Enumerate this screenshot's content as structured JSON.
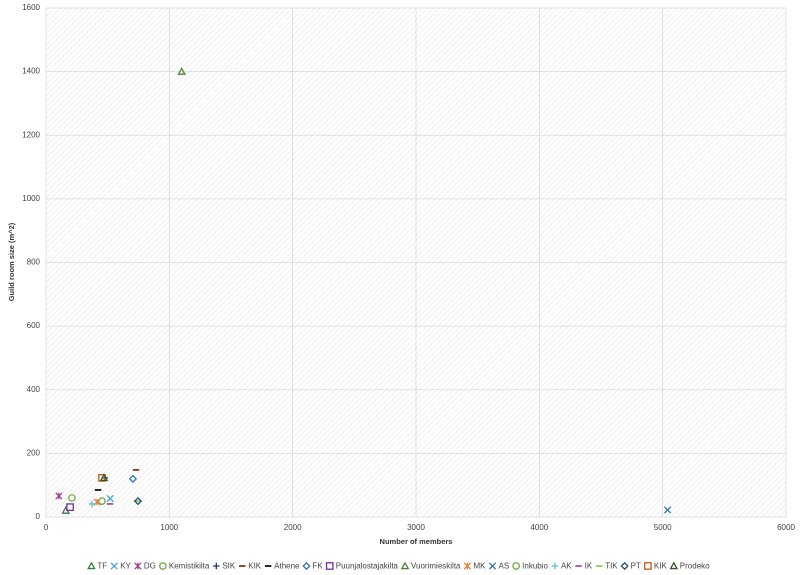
{
  "chart_data": {
    "type": "scatter",
    "x_label": "Number of members",
    "y_label": "Guild room size (m^2)",
    "xlim": [
      0,
      6000
    ],
    "xticks": [
      0,
      1000,
      2000,
      3000,
      4000,
      5000,
      6000
    ],
    "ylim": [
      0,
      1600
    ],
    "yticks": [
      0,
      200,
      400,
      600,
      800,
      1000,
      1200,
      1400,
      1600
    ],
    "grid": true,
    "legend": "bottom",
    "series": [
      {
        "name": "TF",
        "color": "#3a7d44",
        "marker": "triangle",
        "x": [
          160
        ],
        "values": [
          20
        ]
      },
      {
        "name": "KY",
        "color": "#4aa3c7",
        "marker": "x",
        "x": [
          520
        ],
        "values": [
          58
        ]
      },
      {
        "name": "DG",
        "color": "#9b3d9b",
        "marker": "star",
        "x": [
          105
        ],
        "values": [
          66
        ]
      },
      {
        "name": "Kemistikilta",
        "color": "#70ad47",
        "marker": "circle",
        "x": [
          210
        ],
        "values": [
          60
        ]
      },
      {
        "name": "SIK",
        "color": "#1f3864",
        "marker": "plus",
        "x": [
          478
        ],
        "values": [
          123
        ]
      },
      {
        "name": "KIK",
        "color": "#843c0c",
        "marker": "dash",
        "x": [
          730
        ],
        "values": [
          148
        ]
      },
      {
        "name": "Athene",
        "color": "#111111",
        "marker": "dash",
        "x": [
          422
        ],
        "values": [
          85
        ]
      },
      {
        "name": "FK",
        "color": "#2e75b6",
        "marker": "diamond",
        "x": [
          705
        ],
        "values": [
          120
        ]
      },
      {
        "name": "Puunjalostajakilta",
        "color": "#7030a0",
        "marker": "square",
        "x": [
          195
        ],
        "values": [
          31
        ]
      },
      {
        "name": "Vuorimieskilta",
        "color": "#548235",
        "marker": "triangle",
        "x": [
          1100
        ],
        "values": [
          1400
        ]
      },
      {
        "name": "MK",
        "color": "#ed7d31",
        "marker": "star",
        "x": [
          414
        ],
        "values": [
          47
        ]
      },
      {
        "name": "AS",
        "color": "#2e75b6",
        "marker": "x",
        "x": [
          5040
        ],
        "values": [
          22
        ]
      },
      {
        "name": "Inkubio",
        "color": "#70ad47",
        "marker": "circle",
        "x": [
          454
        ],
        "values": [
          50
        ]
      },
      {
        "name": "AK",
        "color": "#5bc0de",
        "marker": "plus",
        "x": [
          373
        ],
        "values": [
          41
        ]
      },
      {
        "name": "IK",
        "color": "#a05ca0",
        "marker": "dash",
        "x": [
          519
        ],
        "values": [
          41
        ]
      },
      {
        "name": "TIK",
        "color": "#92d050",
        "marker": "dash",
        "x": [
          738
        ],
        "values": [
          50
        ]
      },
      {
        "name": "PT",
        "color": "#1f4e79",
        "marker": "diamond",
        "x": [
          746
        ],
        "values": [
          50
        ]
      },
      {
        "name": "KIK",
        "color": "#c55a11",
        "marker": "square",
        "x": [
          454
        ],
        "values": [
          123
        ]
      },
      {
        "name": "Prodeko",
        "color": "#375623",
        "marker": "triangle",
        "x": [
          470
        ],
        "values": [
          123
        ]
      }
    ]
  }
}
